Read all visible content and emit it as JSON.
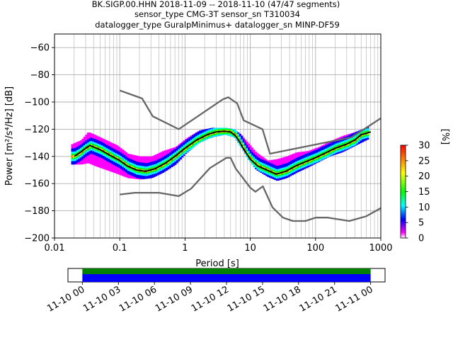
{
  "title_lines": [
    "BK.SIGP.00.HHN   2018-11-09 -- 2018-11-10  (47/47 segments)",
    "sensor_type CMG-3T sensor_sn T310034",
    "datalogger_type GuralpMinimus+ datalogger_sn MINP-DF59"
  ],
  "chart_data": [
    {
      "type": "heatmap",
      "title": "BK.SIGP.00.HHN   2018-11-09 -- 2018-11-10  (47/47 segments)",
      "xlabel": "Period [s]",
      "ylabel": "Power [m²/s⁴/Hz] [dB]",
      "x_scale": "log",
      "xlim": [
        0.01,
        1000
      ],
      "ylim": [
        -200,
        -50
      ],
      "x_ticks": [
        0.01,
        0.1,
        1,
        10,
        100,
        1000
      ],
      "x_tick_labels": [
        "0.01",
        "0.1",
        "1",
        "10",
        "100",
        "1000"
      ],
      "y_ticks": [
        -200,
        -180,
        -160,
        -140,
        -120,
        -100,
        -80,
        -60
      ],
      "y_tick_labels": [
        "−200",
        "−180",
        "−160",
        "−140",
        "−120",
        "−100",
        "−80",
        "−60"
      ],
      "grid": true,
      "colorbar": {
        "label": "[%]",
        "range": [
          0,
          30
        ],
        "ticks": [
          0,
          5,
          10,
          15,
          20,
          25,
          30
        ],
        "colors": [
          "#ffffff",
          "#ff00ff",
          "#0000ff",
          "#00ffff",
          "#00ff00",
          "#ffff00",
          "#ff8000",
          "#ff0000"
        ]
      },
      "median_color": "#000000",
      "noise_model_color": "#666666",
      "series": [
        {
          "name": "median",
          "points": [
            [
              0.02,
              -140
            ],
            [
              0.025,
              -137
            ],
            [
              0.03,
              -134
            ],
            [
              0.035,
              -132
            ],
            [
              0.05,
              -135
            ],
            [
              0.07,
              -139
            ],
            [
              0.1,
              -143
            ],
            [
              0.13,
              -147
            ],
            [
              0.18,
              -150
            ],
            [
              0.25,
              -151
            ],
            [
              0.35,
              -149
            ],
            [
              0.5,
              -145
            ],
            [
              0.7,
              -140
            ],
            [
              1.0,
              -134
            ],
            [
              1.5,
              -128
            ],
            [
              2.2,
              -124
            ],
            [
              3.0,
              -122
            ],
            [
              4.0,
              -121.5
            ],
            [
              5.0,
              -122
            ],
            [
              6.0,
              -125
            ],
            [
              7.0,
              -130
            ],
            [
              8.0,
              -135
            ],
            [
              10,
              -142
            ],
            [
              13,
              -147
            ],
            [
              18,
              -150
            ],
            [
              25,
              -153
            ],
            [
              35,
              -151
            ],
            [
              50,
              -147
            ],
            [
              70,
              -144
            ],
            [
              100,
              -141
            ],
            [
              150,
              -137
            ],
            [
              200,
              -134
            ],
            [
              300,
              -131
            ],
            [
              400,
              -128
            ],
            [
              500,
              -124
            ],
            [
              600,
              -123
            ],
            [
              700,
              -122
            ]
          ]
        },
        {
          "name": "nhnm",
          "points": [
            [
              0.1,
              -91.5
            ],
            [
              0.22,
              -97.4
            ],
            [
              0.32,
              -110.5
            ],
            [
              0.8,
              -120
            ],
            [
              3.8,
              -98
            ],
            [
              4.6,
              -96.5
            ],
            [
              6.3,
              -101
            ],
            [
              7.9,
              -113.5
            ],
            [
              15.4,
              -120
            ],
            [
              20,
              -138
            ],
            [
              354.8,
              -126
            ],
            [
              1000,
              -112
            ]
          ]
        },
        {
          "name": "nlnm",
          "points": [
            [
              0.1,
              -168
            ],
            [
              0.17,
              -166.7
            ],
            [
              0.4,
              -166.7
            ],
            [
              0.8,
              -169.2
            ],
            [
              1.24,
              -163.7
            ],
            [
              2.4,
              -148.6
            ],
            [
              4.3,
              -141.1
            ],
            [
              5.0,
              -141.1
            ],
            [
              6.0,
              -149
            ],
            [
              10,
              -163
            ],
            [
              12,
              -166
            ],
            [
              15.6,
              -162
            ],
            [
              21.9,
              -177.5
            ],
            [
              31.6,
              -185
            ],
            [
              45,
              -187.5
            ],
            [
              70,
              -187.5
            ],
            [
              101,
              -185
            ],
            [
              154,
              -185
            ],
            [
              328,
              -187.5
            ],
            [
              600,
              -184
            ],
            [
              1000,
              -178
            ]
          ]
        }
      ],
      "density_band": {
        "description": "probability density of PSD values",
        "points": [
          [
            0.018,
            -146,
            -131
          ],
          [
            0.025,
            -146,
            -128
          ],
          [
            0.032,
            -145,
            -122
          ],
          [
            0.04,
            -147,
            -124
          ],
          [
            0.06,
            -150,
            -128
          ],
          [
            0.09,
            -153,
            -132
          ],
          [
            0.13,
            -156,
            -138
          ],
          [
            0.2,
            -157,
            -140
          ],
          [
            0.3,
            -156,
            -140
          ],
          [
            0.45,
            -152,
            -136
          ],
          [
            0.7,
            -146,
            -133
          ],
          [
            1.0,
            -138,
            -127
          ],
          [
            1.6,
            -130,
            -121
          ],
          [
            2.5,
            -126,
            -119
          ],
          [
            4,
            -124,
            -119
          ],
          [
            5.5,
            -126,
            -120
          ],
          [
            7,
            -133,
            -124
          ],
          [
            9,
            -142,
            -130
          ],
          [
            12,
            -150,
            -137
          ],
          [
            18,
            -155,
            -143
          ],
          [
            25,
            -158,
            -142
          ],
          [
            35,
            -156,
            -140
          ],
          [
            50,
            -152,
            -137
          ],
          [
            75,
            -148,
            -136
          ],
          [
            110,
            -144,
            -133
          ],
          [
            160,
            -140,
            -129
          ],
          [
            250,
            -137,
            -125
          ],
          [
            400,
            -132,
            -122
          ],
          [
            650,
            -127,
            -118
          ]
        ]
      }
    },
    {
      "type": "timeline",
      "x_tick_labels": [
        "11-10 00",
        "11-10 03",
        "11-10 06",
        "11-10 09",
        "11-10 12",
        "11-10 15",
        "11-10 18",
        "11-10 21",
        "11-11 00"
      ],
      "range_hours": [
        -1.2,
        25.2
      ],
      "data_start_hour": 0,
      "data_end_hour": 24,
      "bands": [
        {
          "name": "coverage",
          "color": "#008000"
        },
        {
          "name": "segments",
          "color": "#0000ff"
        }
      ]
    }
  ]
}
